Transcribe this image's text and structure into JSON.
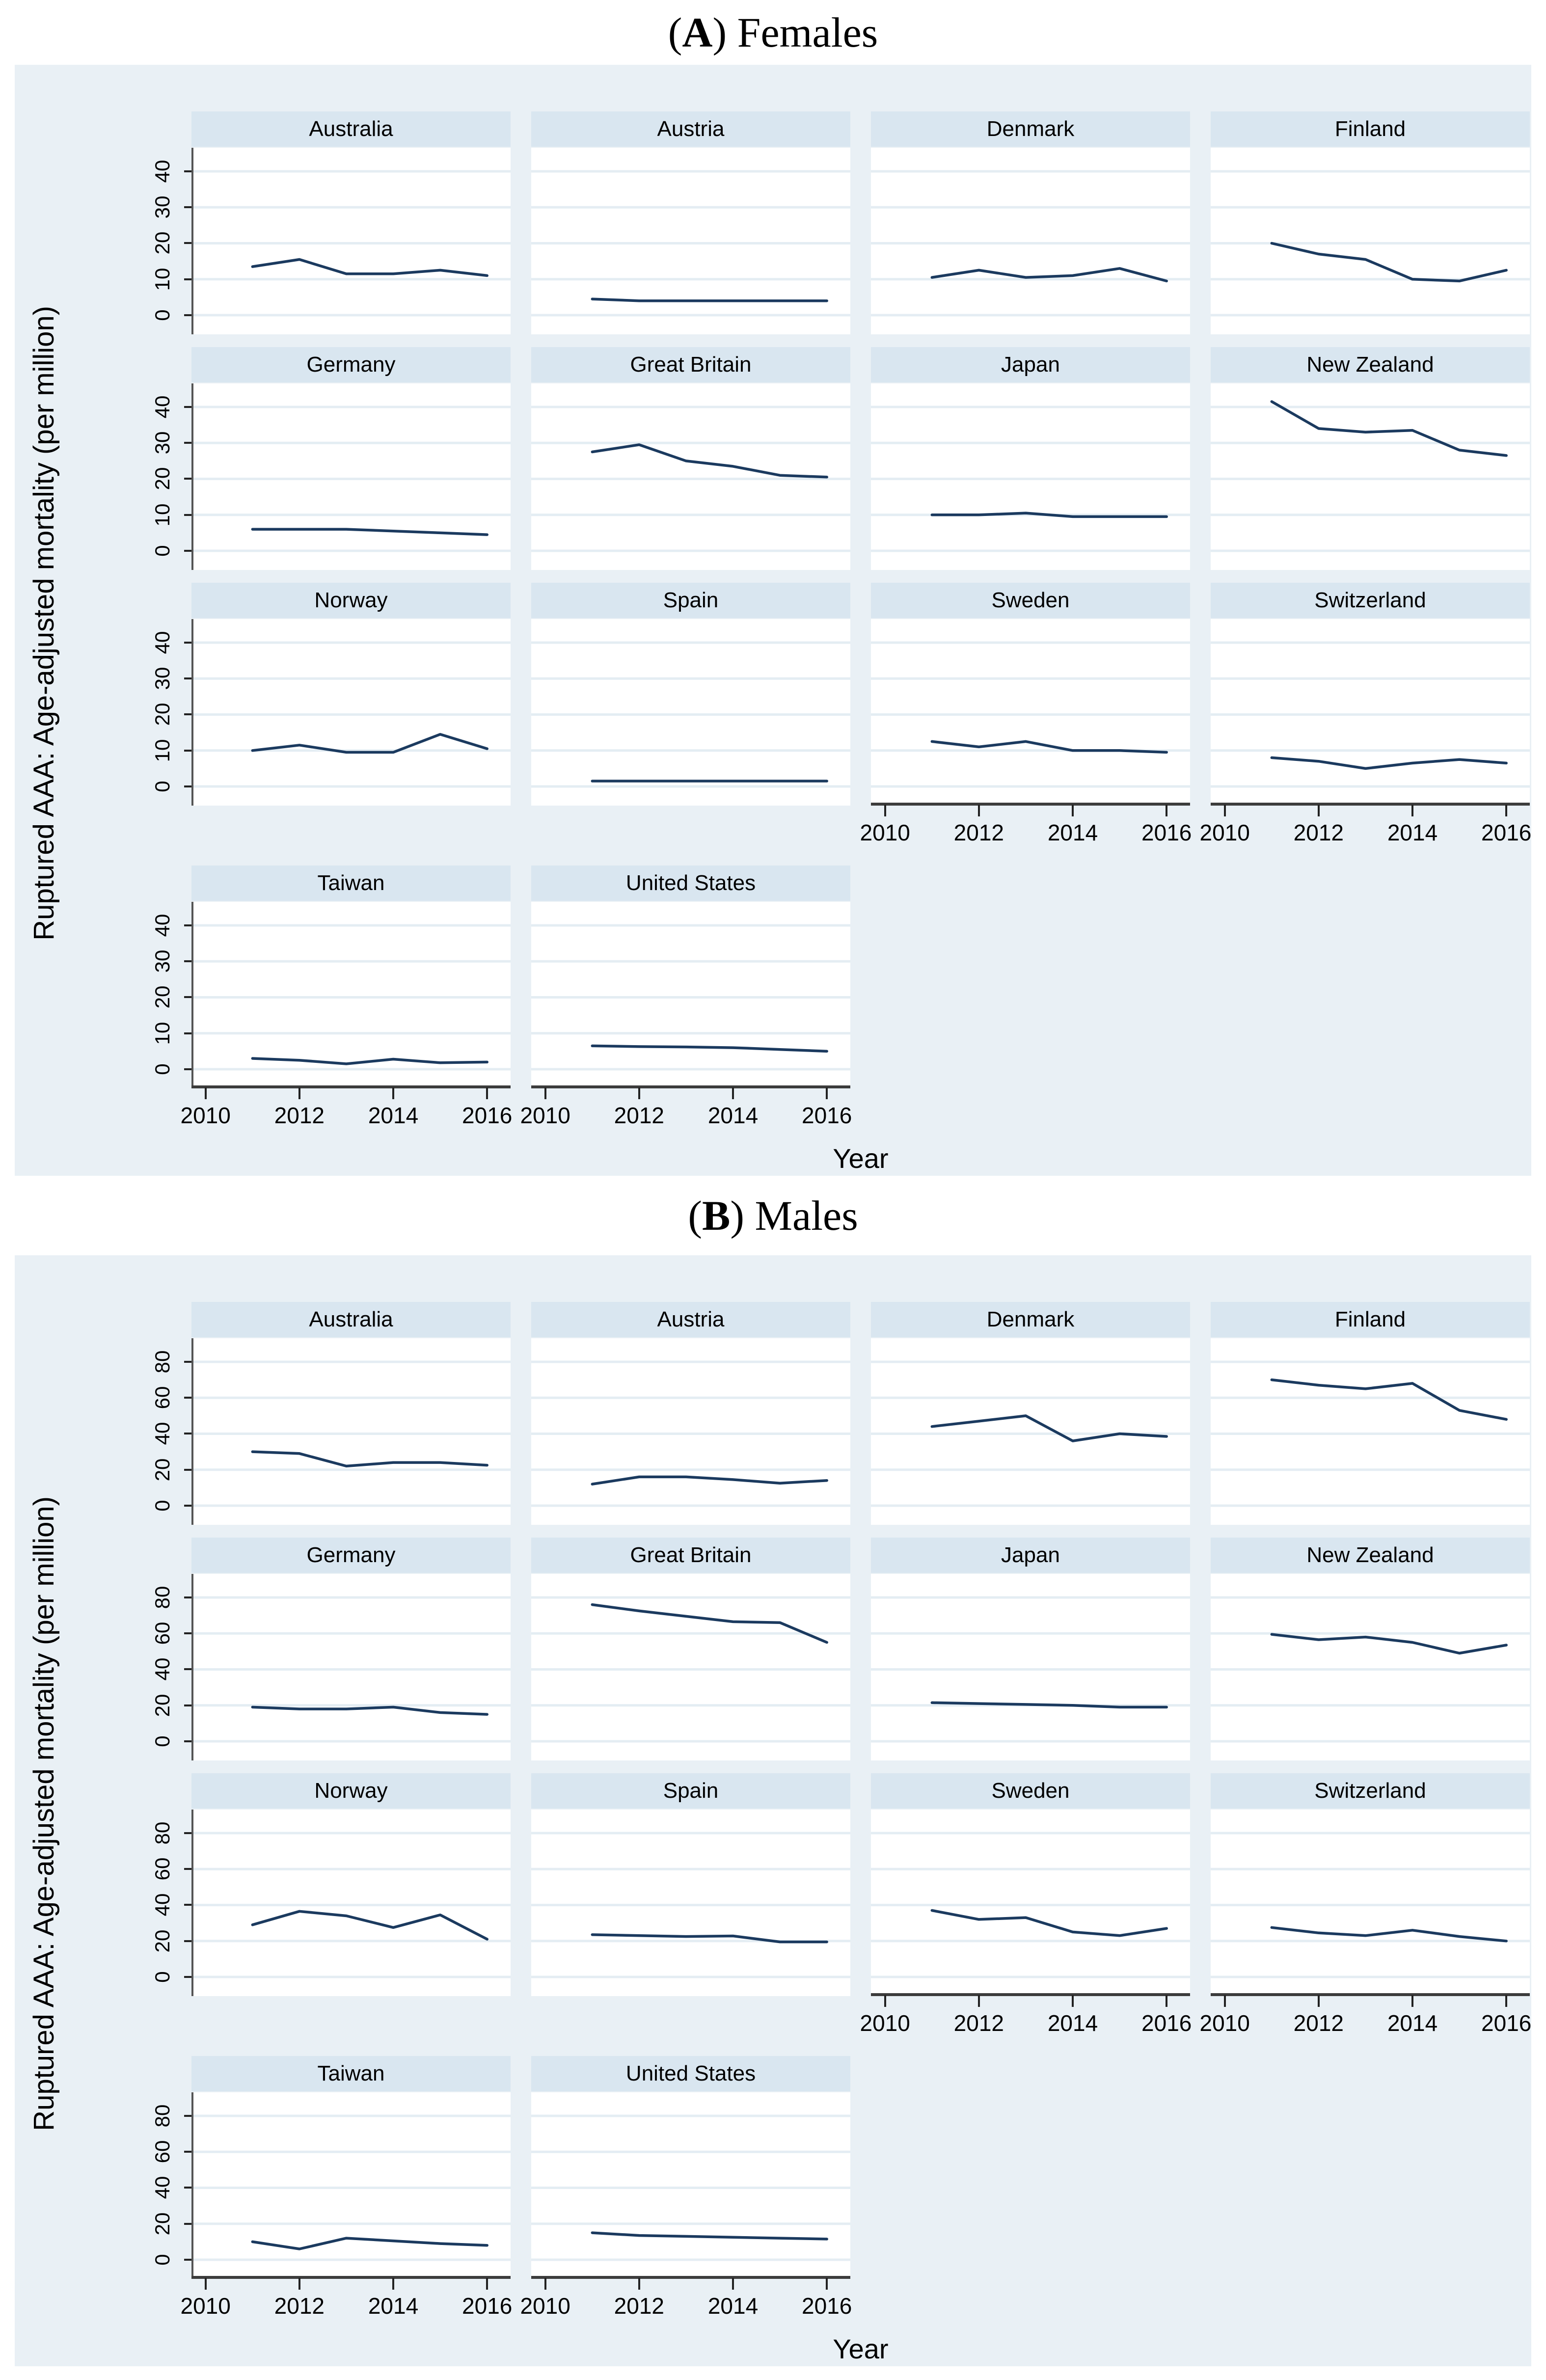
{
  "panels": [
    {
      "lparen": "(",
      "label": "A",
      "rparen": ") ",
      "title": "Females"
    },
    {
      "lparen": "(",
      "label": "B",
      "rparen": ") ",
      "title": "Males"
    }
  ],
  "colors": {
    "line": "#1b3a5f",
    "panel_bg": "#e9f0f5",
    "header_bg": "#d9e6f0",
    "gridline": "#e4edf3",
    "x_axis_bar": "#3c3c3c",
    "y_axis_line": "#555555",
    "tick": "#222222"
  },
  "chart_data": [
    {
      "type": "line",
      "panel": "A",
      "title": "Females",
      "ylabel": "Ruptured AAA: Age-adjusted mortality (per million)",
      "xlabel": "Year",
      "x": [
        2011,
        2012,
        2013,
        2014,
        2015,
        2016
      ],
      "xticks": [
        2010,
        2012,
        2014,
        2016
      ],
      "yticks": [
        0,
        10,
        20,
        30,
        40
      ],
      "ylim": [
        -4.5,
        46
      ],
      "xlim": [
        2009.7,
        2016.5
      ],
      "grid": true,
      "legend": "none",
      "facets": [
        {
          "name": "Australia",
          "values": [
            13.5,
            15.5,
            11.5,
            11.5,
            12.5,
            11
          ]
        },
        {
          "name": "Austria",
          "values": [
            4.5,
            4,
            4,
            4,
            4,
            4
          ]
        },
        {
          "name": "Denmark",
          "values": [
            10.5,
            12.5,
            10.5,
            11,
            13,
            9.5
          ]
        },
        {
          "name": "Finland",
          "values": [
            20,
            17,
            15.5,
            10,
            9.5,
            12.5
          ]
        },
        {
          "name": "Germany",
          "values": [
            6,
            6,
            6,
            5.5,
            5,
            4.5
          ]
        },
        {
          "name": "Great Britain",
          "values": [
            27.5,
            29.5,
            25,
            23.5,
            21,
            20.5
          ]
        },
        {
          "name": "Japan",
          "values": [
            10,
            10,
            10.5,
            9.5,
            9.5,
            9.5
          ]
        },
        {
          "name": "New Zealand",
          "values": [
            41.5,
            34,
            33,
            33.5,
            28,
            26.5
          ]
        },
        {
          "name": "Norway",
          "values": [
            10,
            11.5,
            9.5,
            9.5,
            14.5,
            10.5
          ]
        },
        {
          "name": "Spain",
          "values": [
            1.5,
            1.5,
            1.5,
            1.5,
            1.5,
            1.5
          ]
        },
        {
          "name": "Sweden",
          "values": [
            12.5,
            11,
            12.5,
            10,
            10,
            9.5
          ]
        },
        {
          "name": "Switzerland",
          "values": [
            8,
            7,
            5,
            6.5,
            7.5,
            6.5
          ]
        },
        {
          "name": "Taiwan",
          "values": [
            3,
            2.5,
            1.5,
            2.8,
            1.8,
            2
          ]
        },
        {
          "name": "United States",
          "values": [
            6.5,
            6.3,
            6.2,
            6,
            5.5,
            5
          ]
        }
      ]
    },
    {
      "type": "line",
      "panel": "B",
      "title": "Males",
      "ylabel": "Ruptured AAA: Age-adjusted mortality (per million)",
      "xlabel": "Year",
      "x": [
        2011,
        2012,
        2013,
        2014,
        2015,
        2016
      ],
      "xticks": [
        2010,
        2012,
        2014,
        2016
      ],
      "yticks": [
        0,
        20,
        40,
        60,
        80
      ],
      "ylim": [
        -9,
        92
      ],
      "xlim": [
        2009.7,
        2016.5
      ],
      "grid": true,
      "legend": "none",
      "facets": [
        {
          "name": "Australia",
          "values": [
            30,
            29,
            22,
            24,
            24,
            22.5
          ]
        },
        {
          "name": "Austria",
          "values": [
            12,
            16,
            16,
            14.5,
            12.5,
            14
          ]
        },
        {
          "name": "Denmark",
          "values": [
            44,
            47,
            50,
            36,
            40,
            38.5
          ]
        },
        {
          "name": "Finland",
          "values": [
            70,
            67,
            65,
            68,
            53,
            48
          ]
        },
        {
          "name": "Germany",
          "values": [
            19,
            18,
            18,
            19,
            16,
            15
          ]
        },
        {
          "name": "Great Britain",
          "values": [
            76,
            72.5,
            69.5,
            66.5,
            66,
            55
          ]
        },
        {
          "name": "Japan",
          "values": [
            21.5,
            21,
            20.5,
            20,
            19,
            19
          ]
        },
        {
          "name": "New Zealand",
          "values": [
            59.5,
            56.5,
            58,
            55,
            49,
            53.5
          ]
        },
        {
          "name": "Norway",
          "values": [
            29,
            36.5,
            34,
            27.5,
            34.5,
            21
          ]
        },
        {
          "name": "Spain",
          "values": [
            23.5,
            23,
            22.5,
            22.8,
            19.5,
            19.5
          ]
        },
        {
          "name": "Sweden",
          "values": [
            37,
            32,
            33,
            25,
            23,
            27
          ]
        },
        {
          "name": "Switzerland",
          "values": [
            27.5,
            24.5,
            23,
            26,
            22.5,
            20
          ]
        },
        {
          "name": "Taiwan",
          "values": [
            10,
            6,
            12,
            10.5,
            9,
            8
          ]
        },
        {
          "name": "United States",
          "values": [
            15,
            13.5,
            13,
            12.5,
            12,
            11.5
          ]
        }
      ]
    }
  ]
}
